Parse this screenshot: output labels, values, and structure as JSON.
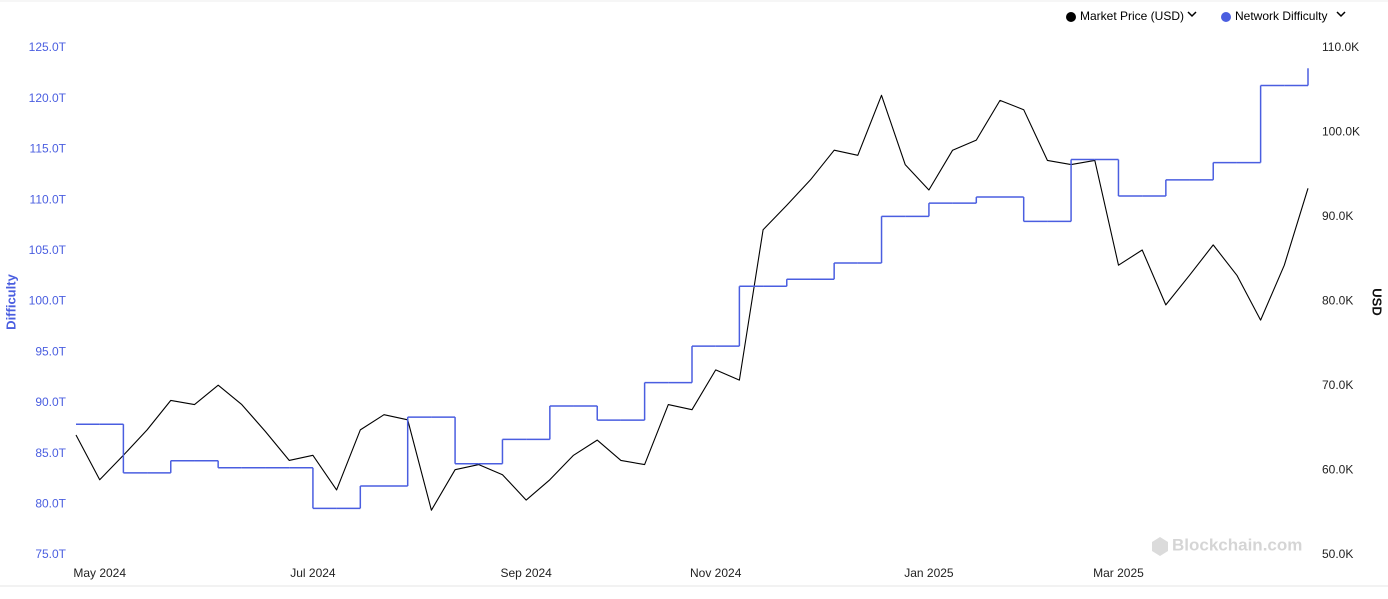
{
  "chart_data": {
    "type": "line",
    "y_label": "Difficulty",
    "y2_label": "USD",
    "watermark": "Blockchain.com",
    "categories": [
      null,
      "May 2024",
      null,
      null,
      null,
      null,
      null,
      null,
      null,
      null,
      "Jul 2024",
      null,
      null,
      null,
      null,
      null,
      null,
      null,
      null,
      "Sep 2024",
      null,
      null,
      null,
      null,
      null,
      null,
      null,
      "Nov 2024",
      null,
      null,
      null,
      null,
      null,
      null,
      null,
      null,
      "Jan 2025",
      null,
      null,
      null,
      null,
      null,
      null,
      null,
      "Mar 2025",
      null,
      null,
      null,
      null,
      null,
      null,
      null,
      null
    ],
    "series": [
      {
        "name": "Market Price (USD)",
        "color": "#000000",
        "axis": "y2",
        "values": [
          64.2,
          58.9,
          61.8,
          64.8,
          68.3,
          67.8,
          70.1,
          67.8,
          64.6,
          61.2,
          61.8,
          57.7,
          64.8,
          66.6,
          66.0,
          55.3,
          60.1,
          60.7,
          59.5,
          56.5,
          58.9,
          61.8,
          63.6,
          61.2,
          60.7,
          67.8,
          67.2,
          71.9,
          70.7,
          88.5,
          91.4,
          94.4,
          97.9,
          97.3,
          104.4,
          96.2,
          93.2,
          97.9,
          99.1,
          103.8,
          102.7,
          96.7,
          96.2,
          96.7,
          84.3,
          86.1,
          79.6,
          83.1,
          86.7,
          83.1,
          77.8,
          84.3,
          93.4
        ]
      },
      {
        "name": "Network Difficulty",
        "color": "#4a5ee0",
        "step": true,
        "values": [
          87.9,
          87.9,
          83.1,
          83.1,
          84.3,
          84.3,
          83.6,
          83.6,
          83.6,
          83.6,
          79.6,
          79.6,
          81.8,
          81.8,
          88.6,
          88.6,
          84.0,
          84.0,
          86.4,
          86.4,
          89.7,
          89.7,
          88.3,
          88.3,
          92.0,
          92.0,
          95.6,
          95.6,
          101.5,
          101.5,
          102.2,
          102.2,
          103.8,
          103.8,
          108.4,
          108.4,
          109.7,
          109.7,
          110.3,
          110.3,
          107.9,
          107.9,
          114.0,
          114.0,
          110.4,
          110.4,
          112.0,
          112.0,
          113.7,
          113.7,
          121.3,
          121.3,
          123.0
        ]
      }
    ],
    "ylim": [
      75,
      125
    ],
    "yticks": [
      {
        "value": 75,
        "label": "75.0T"
      },
      {
        "value": 80,
        "label": "80.0T"
      },
      {
        "value": 85,
        "label": "85.0T"
      },
      {
        "value": 90,
        "label": "90.0T"
      },
      {
        "value": 95,
        "label": "95.0T"
      },
      {
        "value": 100,
        "label": "100.0T"
      },
      {
        "value": 105,
        "label": "105.0T"
      },
      {
        "value": 110,
        "label": "110.0T"
      },
      {
        "value": 115,
        "label": "115.0T"
      },
      {
        "value": 120,
        "label": "120.0T"
      },
      {
        "value": 125,
        "label": "125.0T"
      }
    ],
    "y2lim": [
      50,
      110
    ],
    "y2ticks": [
      {
        "value": 50,
        "label": "50.0K"
      },
      {
        "value": 60,
        "label": "60.0K"
      },
      {
        "value": 70,
        "label": "70.0K"
      },
      {
        "value": 80,
        "label": "80.0K"
      },
      {
        "value": 90,
        "label": "90.0K"
      },
      {
        "value": 100,
        "label": "100.0K"
      },
      {
        "value": 110,
        "label": "110.0K"
      }
    ],
    "grid": false
  }
}
